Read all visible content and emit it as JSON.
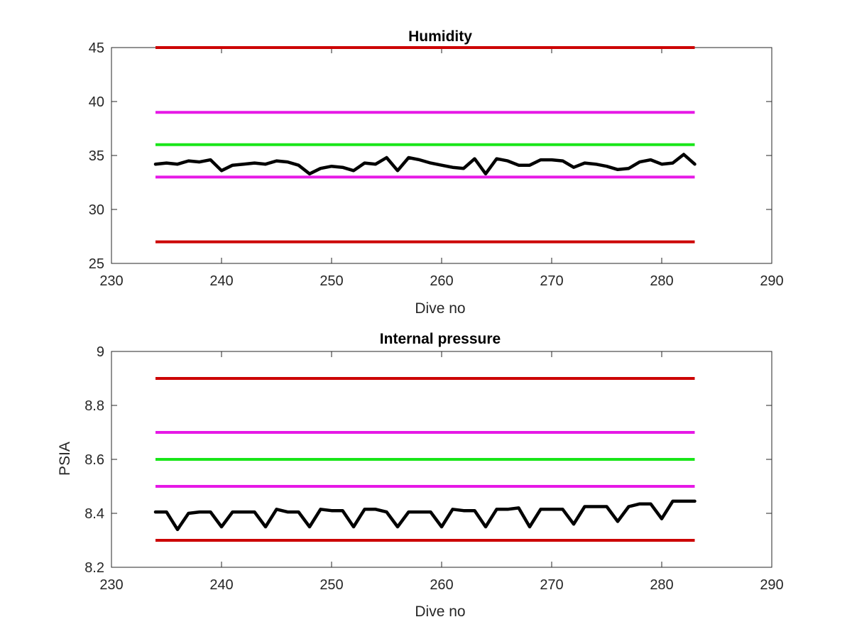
{
  "figure": {
    "background": "#ffffff",
    "colors": {
      "data": "#000000",
      "red": "#cc0000",
      "magenta": "#e619e6",
      "green": "#19e619",
      "axis": "#262626"
    }
  },
  "chart_data": [
    {
      "type": "line",
      "title": "Humidity",
      "xlabel": "Dive no",
      "ylabel": "",
      "xlim": [
        230,
        290
      ],
      "ylim": [
        25,
        45
      ],
      "xticks": [
        230,
        240,
        250,
        260,
        270,
        280,
        290
      ],
      "yticks": [
        25,
        30,
        35,
        40,
        45
      ],
      "grid": false,
      "series": [
        {
          "role": "data",
          "color": "#000000",
          "x": [
            234,
            235,
            236,
            237,
            238,
            239,
            240,
            241,
            242,
            243,
            244,
            245,
            246,
            247,
            248,
            249,
            250,
            251,
            252,
            253,
            254,
            255,
            256,
            257,
            258,
            259,
            260,
            261,
            262,
            263,
            264,
            265,
            266,
            267,
            268,
            269,
            270,
            271,
            272,
            273,
            274,
            275,
            276,
            277,
            278,
            279,
            280,
            281,
            282,
            283
          ],
          "values": [
            34.2,
            34.3,
            34.2,
            34.5,
            34.4,
            34.6,
            33.6,
            34.1,
            34.2,
            34.3,
            34.2,
            34.5,
            34.4,
            34.1,
            33.3,
            33.8,
            34.0,
            33.9,
            33.6,
            34.3,
            34.2,
            34.8,
            33.6,
            34.8,
            34.6,
            34.3,
            34.1,
            33.9,
            33.8,
            34.7,
            33.3,
            34.7,
            34.5,
            34.1,
            34.1,
            34.6,
            34.6,
            34.5,
            33.9,
            34.3,
            34.2,
            34.0,
            33.7,
            33.8,
            34.4,
            34.6,
            34.2,
            34.3,
            35.1,
            34.2
          ]
        },
        {
          "role": "limit",
          "color": "#cc0000",
          "x": [
            234,
            283
          ],
          "values": [
            45,
            45
          ]
        },
        {
          "role": "limit",
          "color": "#e619e6",
          "x": [
            234,
            283
          ],
          "values": [
            39,
            39
          ]
        },
        {
          "role": "limit",
          "color": "#19e619",
          "x": [
            234,
            283
          ],
          "values": [
            36,
            36
          ]
        },
        {
          "role": "limit",
          "color": "#e619e6",
          "x": [
            234,
            283
          ],
          "values": [
            33,
            33
          ]
        },
        {
          "role": "limit",
          "color": "#cc0000",
          "x": [
            234,
            283
          ],
          "values": [
            27,
            27
          ]
        }
      ]
    },
    {
      "type": "line",
      "title": "Internal pressure",
      "xlabel": "Dive no",
      "ylabel": "PSIA",
      "xlim": [
        230,
        290
      ],
      "ylim": [
        8.2,
        9
      ],
      "xticks": [
        230,
        240,
        250,
        260,
        270,
        280,
        290
      ],
      "yticks": [
        8.2,
        8.4,
        8.6,
        8.8,
        9
      ],
      "grid": false,
      "series": [
        {
          "role": "data",
          "color": "#000000",
          "x": [
            234,
            235,
            236,
            237,
            238,
            239,
            240,
            241,
            242,
            243,
            244,
            245,
            246,
            247,
            248,
            249,
            250,
            251,
            252,
            253,
            254,
            255,
            256,
            257,
            258,
            259,
            260,
            261,
            262,
            263,
            264,
            265,
            266,
            267,
            268,
            269,
            270,
            271,
            272,
            273,
            274,
            275,
            276,
            277,
            278,
            279,
            280,
            281,
            282,
            283
          ],
          "values": [
            8.405,
            8.405,
            8.34,
            8.4,
            8.405,
            8.405,
            8.35,
            8.405,
            8.405,
            8.405,
            8.35,
            8.415,
            8.405,
            8.405,
            8.35,
            8.415,
            8.41,
            8.41,
            8.35,
            8.415,
            8.415,
            8.405,
            8.35,
            8.405,
            8.405,
            8.405,
            8.35,
            8.415,
            8.41,
            8.41,
            8.35,
            8.415,
            8.415,
            8.42,
            8.35,
            8.415,
            8.415,
            8.415,
            8.36,
            8.425,
            8.425,
            8.425,
            8.37,
            8.425,
            8.435,
            8.435,
            8.38,
            8.445,
            8.445,
            8.445
          ]
        },
        {
          "role": "limit",
          "color": "#cc0000",
          "x": [
            234,
            283
          ],
          "values": [
            8.9,
            8.9
          ]
        },
        {
          "role": "limit",
          "color": "#e619e6",
          "x": [
            234,
            283
          ],
          "values": [
            8.7,
            8.7
          ]
        },
        {
          "role": "limit",
          "color": "#19e619",
          "x": [
            234,
            283
          ],
          "values": [
            8.6,
            8.6
          ]
        },
        {
          "role": "limit",
          "color": "#e619e6",
          "x": [
            234,
            283
          ],
          "values": [
            8.5,
            8.5
          ]
        },
        {
          "role": "limit",
          "color": "#cc0000",
          "x": [
            234,
            283
          ],
          "values": [
            8.3,
            8.3
          ]
        }
      ]
    }
  ]
}
